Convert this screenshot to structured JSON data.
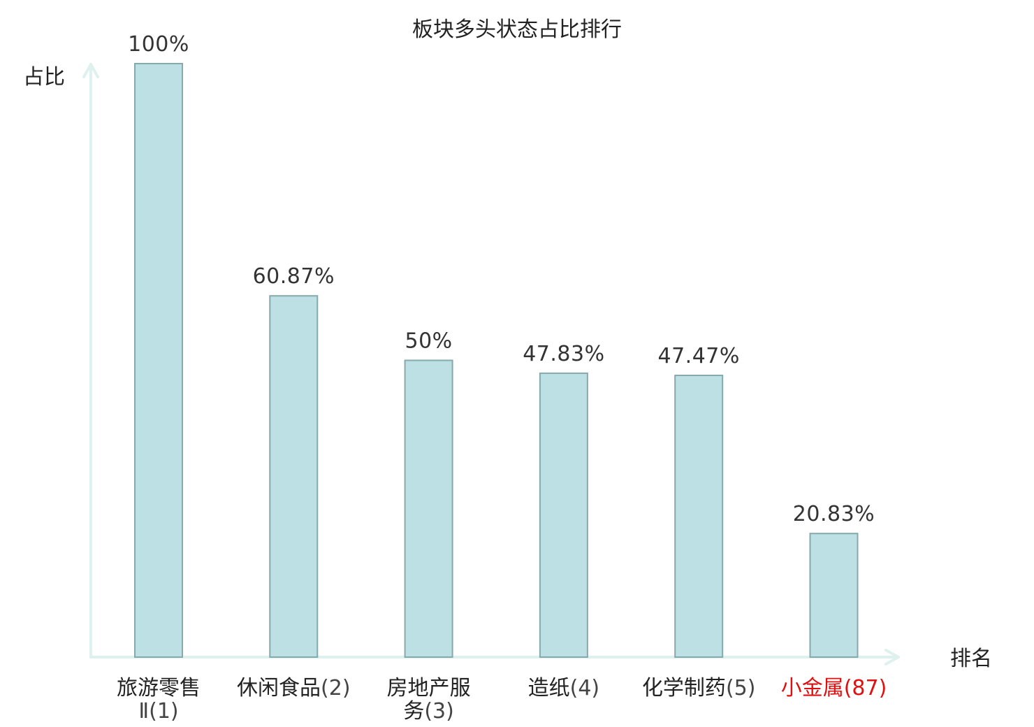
{
  "chart_data": {
    "type": "bar",
    "title": "板块多头状态占比排行",
    "ylabel": "占比",
    "xlabel": "排名",
    "ylim": [
      0,
      100
    ],
    "grid": false,
    "categories": [
      {
        "lines": [
          {
            "name": "旅游零售",
            "rank": ""
          },
          {
            "name": "",
            "rank": "Ⅱ(1)"
          }
        ],
        "highlight": false
      },
      {
        "lines": [
          {
            "name": "休闲食品",
            "rank": "(2)"
          }
        ],
        "highlight": false
      },
      {
        "lines": [
          {
            "name": "房地产服",
            "rank": ""
          },
          {
            "name": "务",
            "rank": "(3)"
          }
        ],
        "highlight": false
      },
      {
        "lines": [
          {
            "name": "造纸",
            "rank": "(4)"
          }
        ],
        "highlight": false
      },
      {
        "lines": [
          {
            "name": "化学制药",
            "rank": "(5)"
          }
        ],
        "highlight": false
      },
      {
        "lines": [
          {
            "name": "小金属",
            "rank": "(87)"
          }
        ],
        "highlight": true
      }
    ],
    "values": [
      100,
      60.87,
      50,
      47.83,
      47.47,
      20.83
    ],
    "value_labels": [
      "100%",
      "60.87%",
      "50%",
      "47.83%",
      "47.47%",
      "20.83%"
    ],
    "colors": {
      "bar_fill": "#bce0e3",
      "bar_stroke": "#86a9ab",
      "axis": "#dff1ef",
      "highlight": "#e01010"
    }
  }
}
